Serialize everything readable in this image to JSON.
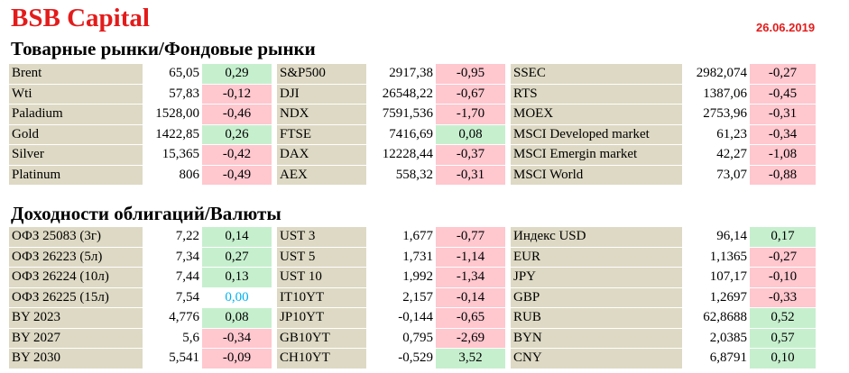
{
  "header": {
    "title": "BSB Capital",
    "date": "26.06.2019"
  },
  "colors": {
    "positive": "#c6efce",
    "negative": "#ffc7ce",
    "name_bg": "#ddd9c4",
    "zero_text": "#00b0f0",
    "title": "#e31b1b"
  },
  "section1": {
    "heading": "Товарные рынки/Фондовые рынки",
    "rows": [
      [
        {
          "n": "Brent",
          "v": "65,05",
          "c": "0,29",
          "t": "pos"
        },
        {
          "n": "S&P500",
          "v": "2917,38",
          "c": "-0,95",
          "t": "neg"
        },
        {
          "n": "SSEC",
          "v": "2982,074",
          "c": "-0,27",
          "t": "neg"
        }
      ],
      [
        {
          "n": "Wti",
          "v": "57,83",
          "c": "-0,12",
          "t": "neg"
        },
        {
          "n": "DJI",
          "v": "26548,22",
          "c": "-0,67",
          "t": "neg"
        },
        {
          "n": "RTS",
          "v": "1387,06",
          "c": "-0,45",
          "t": "neg"
        }
      ],
      [
        {
          "n": "Paladium",
          "v": "1528,00",
          "c": "-0,46",
          "t": "neg"
        },
        {
          "n": "NDX",
          "v": "7591,536",
          "c": "-1,70",
          "t": "neg"
        },
        {
          "n": "MOEX",
          "v": "2753,96",
          "c": "-0,31",
          "t": "neg"
        }
      ],
      [
        {
          "n": "Gold",
          "v": "1422,85",
          "c": "0,26",
          "t": "pos"
        },
        {
          "n": "FTSE",
          "v": "7416,69",
          "c": "0,08",
          "t": "pos"
        },
        {
          "n": "MSCI Developed market",
          "v": "61,23",
          "c": "-0,34",
          "t": "neg"
        }
      ],
      [
        {
          "n": "Silver",
          "v": "15,365",
          "c": "-0,42",
          "t": "neg"
        },
        {
          "n": "DAX",
          "v": "12228,44",
          "c": "-0,37",
          "t": "neg"
        },
        {
          "n": "MSCI Emergin market",
          "v": "42,27",
          "c": "-1,08",
          "t": "neg"
        }
      ],
      [
        {
          "n": "Platinum",
          "v": "806",
          "c": "-0,49",
          "t": "neg"
        },
        {
          "n": "AEX",
          "v": "558,32",
          "c": "-0,31",
          "t": "neg"
        },
        {
          "n": "MSCI World",
          "v": "73,07",
          "c": "-0,88",
          "t": "neg"
        }
      ]
    ]
  },
  "section2": {
    "heading": "Доходности облигаций/Валюты",
    "rows": [
      [
        {
          "n": "ОФЗ 25083 (3г)",
          "v": "7,22",
          "c": "0,14",
          "t": "pos"
        },
        {
          "n": "UST 3",
          "v": "1,677",
          "c": "-0,77",
          "t": "neg"
        },
        {
          "n": "Индекс USD",
          "v": "96,14",
          "c": "0,17",
          "t": "pos"
        }
      ],
      [
        {
          "n": "ОФЗ 26223 (5л)",
          "v": "7,34",
          "c": "0,27",
          "t": "pos"
        },
        {
          "n": "UST 5",
          "v": "1,731",
          "c": "-1,14",
          "t": "neg"
        },
        {
          "n": "EUR",
          "v": "1,1365",
          "c": "-0,27",
          "t": "neg"
        }
      ],
      [
        {
          "n": "ОФЗ 26224 (10л)",
          "v": "7,44",
          "c": "0,13",
          "t": "pos"
        },
        {
          "n": "UST 10",
          "v": "1,992",
          "c": "-1,34",
          "t": "neg"
        },
        {
          "n": "JPY",
          "v": "107,17",
          "c": "-0,10",
          "t": "neg"
        }
      ],
      [
        {
          "n": "ОФЗ 26225 (15л)",
          "v": "7,54",
          "c": "0,00",
          "t": "zero"
        },
        {
          "n": "IT10YT",
          "v": "2,157",
          "c": "-0,14",
          "t": "neg"
        },
        {
          "n": "GBP",
          "v": "1,2697",
          "c": "-0,33",
          "t": "neg"
        }
      ],
      [
        {
          "n": "BY 2023",
          "v": "4,776",
          "c": "0,08",
          "t": "pos"
        },
        {
          "n": "JP10YT",
          "v": "-0,144",
          "c": "-0,65",
          "t": "neg"
        },
        {
          "n": "RUB",
          "v": "62,8688",
          "c": "0,52",
          "t": "pos"
        }
      ],
      [
        {
          "n": "BY 2027",
          "v": "5,6",
          "c": "-0,34",
          "t": "neg"
        },
        {
          "n": "GB10YT",
          "v": "0,795",
          "c": "-2,69",
          "t": "neg"
        },
        {
          "n": "BYN",
          "v": "2,0385",
          "c": "0,57",
          "t": "pos"
        }
      ],
      [
        {
          "n": "BY 2030",
          "v": "5,541",
          "c": "-0,09",
          "t": "neg"
        },
        {
          "n": "CH10YT",
          "v": "-0,529",
          "c": "3,52",
          "t": "pos"
        },
        {
          "n": "CNY",
          "v": "6,8791",
          "c": "0,10",
          "t": "pos"
        }
      ]
    ]
  }
}
